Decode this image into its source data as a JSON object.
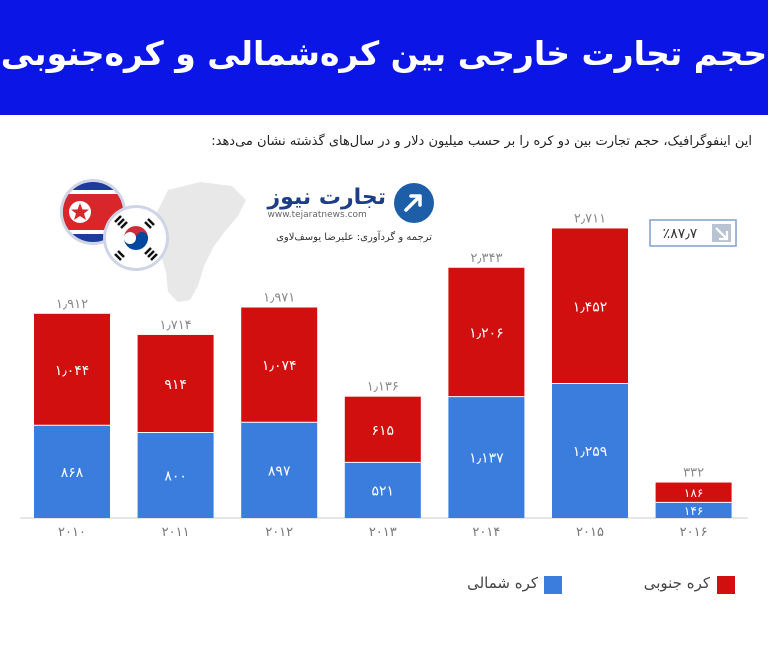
{
  "header": {
    "title": "حجم تجارت خارجی بین کره‌شمالی و کره‌جنوبی"
  },
  "subtitle": "این اینفوگرافیک، حجم تجارت بین دو کره را بر حسب میلیون دلار و در سال‌های گذشته نشان می‌دهد:",
  "logo": {
    "name": "تجارت نیوز",
    "domain": "www.tejaratnews.com"
  },
  "credit": "ترجمه و گردآوری: علیرضا یوسف‌لاوی",
  "badge": {
    "text": "٪۸۷٫۷"
  },
  "colors": {
    "header": "#0b16e6",
    "north": "#3b7ddd",
    "south": "#d10f0f",
    "badge_border": "#7f9fcf"
  },
  "chart_data": {
    "type": "bar",
    "stacked": true,
    "categories": [
      "۲۰۱۰",
      "۲۰۱۱",
      "۲۰۱۲",
      "۲۰۱۳",
      "۲۰۱۴",
      "۲۰۱۵",
      "۲۰۱۶"
    ],
    "series": [
      {
        "name": "کره شمالی",
        "color": "#3b7ddd",
        "values": [
          868,
          800,
          897,
          521,
          1137,
          1259,
          146
        ],
        "labels": [
          "۸۶۸",
          "۸۰۰",
          "۸۹۷",
          "۵۲۱",
          "۱٫۱۳۷",
          "۱٫۲۵۹",
          "۱۴۶"
        ]
      },
      {
        "name": "کره جنوبی",
        "color": "#d10f0f",
        "values": [
          1044,
          914,
          1074,
          615,
          1206,
          1452,
          186
        ],
        "labels": [
          "۱٫۰۴۴",
          "۹۱۴",
          "۱٫۰۷۴",
          "۶۱۵",
          "۱٫۲۰۶",
          "۱٫۴۵۲",
          "۱۸۶"
        ]
      }
    ],
    "totals": [
      1912,
      1714,
      1971,
      1136,
      2343,
      2711,
      332
    ],
    "total_labels": [
      "۱٫۹۱۲",
      "۱٫۷۱۴",
      "۱٫۹۷۱",
      "۱٫۱۳۶",
      "۲٫۳۴۳",
      "۲٫۷۱۱",
      "۳۳۲"
    ],
    "legend": [
      {
        "label": "کره جنوبی",
        "color": "#d10f0f"
      },
      {
        "label": "کره شمالی",
        "color": "#3b7ddd"
      }
    ]
  }
}
